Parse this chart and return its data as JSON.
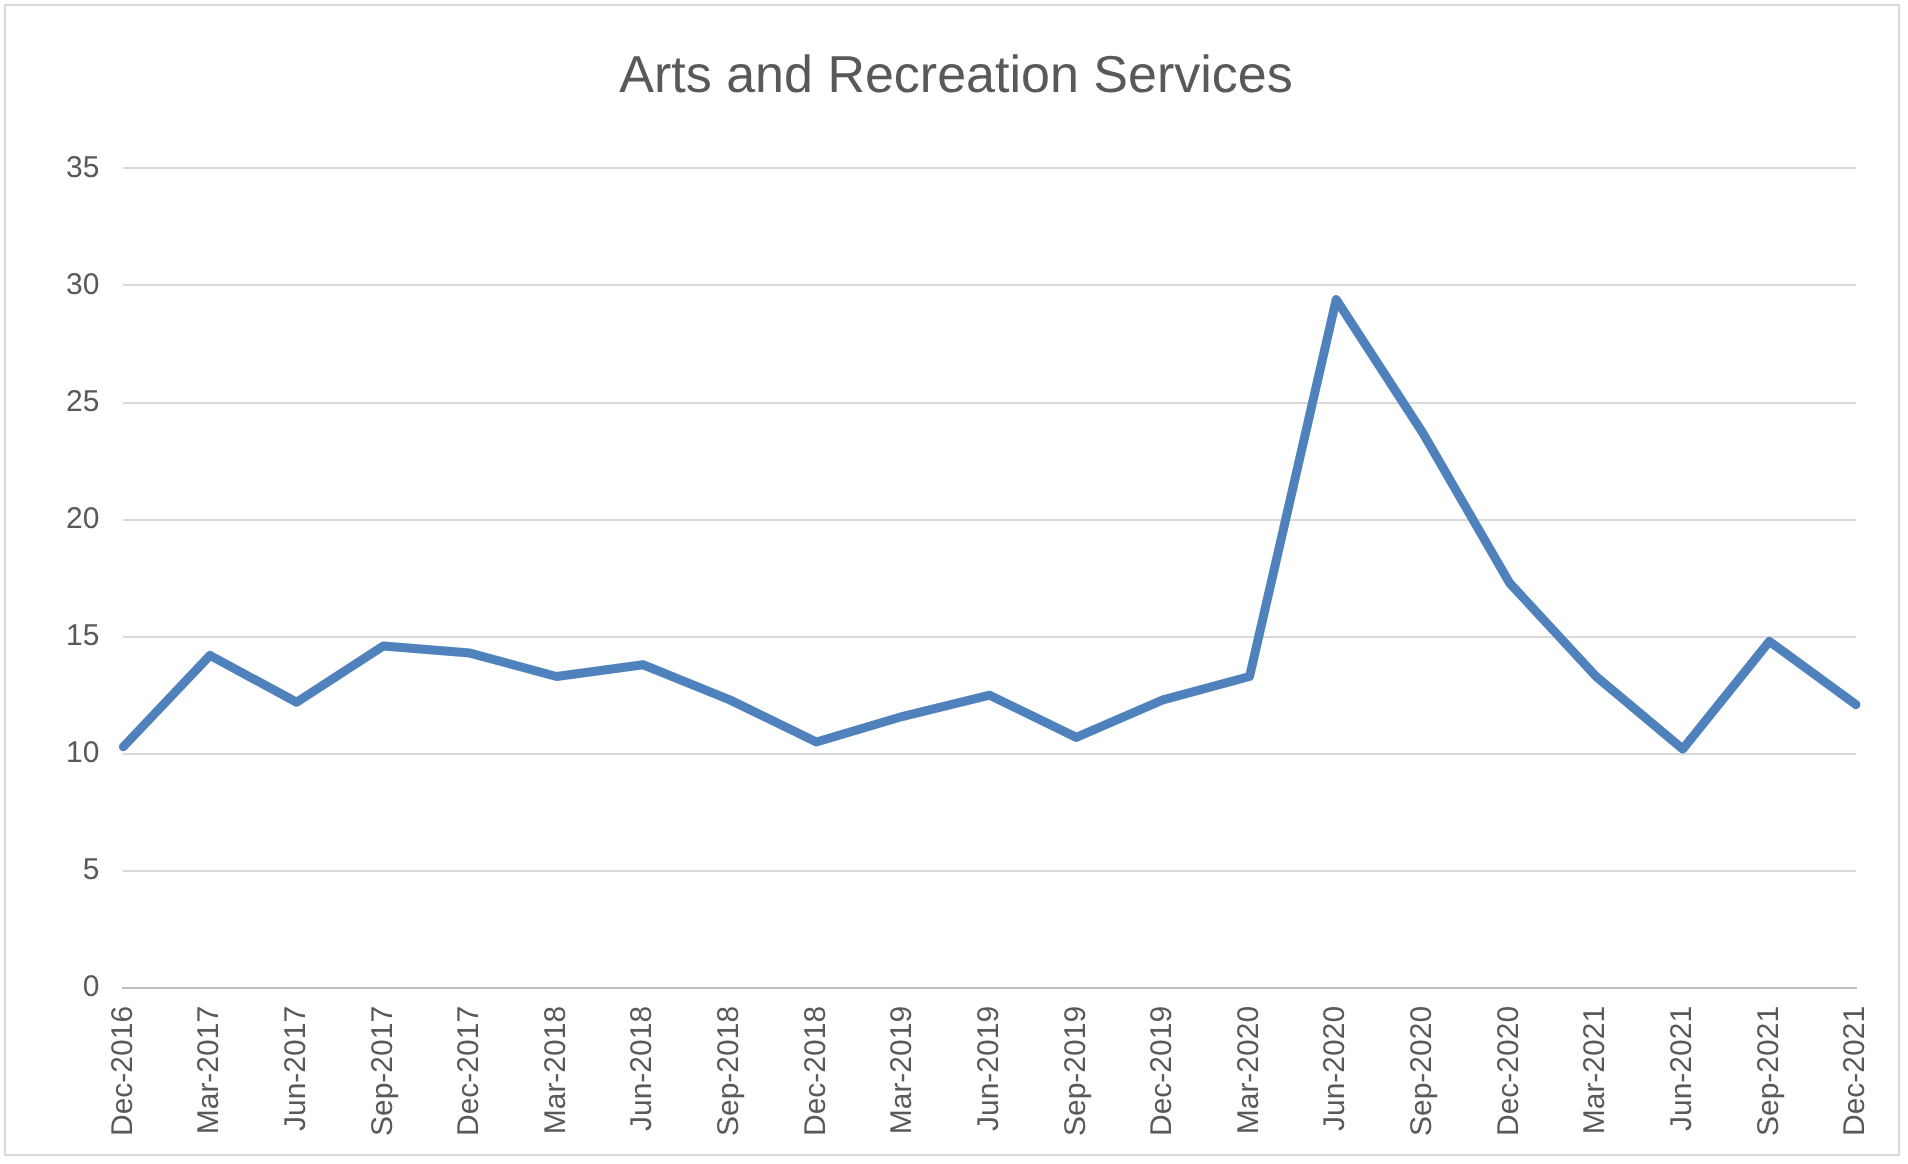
{
  "chart_data": {
    "type": "line",
    "title": "Arts and Recreation Services",
    "categories": [
      "Dec-2016",
      "Mar-2017",
      "Jun-2017",
      "Sep-2017",
      "Dec-2017",
      "Mar-2018",
      "Jun-2018",
      "Sep-2018",
      "Dec-2018",
      "Mar-2019",
      "Jun-2019",
      "Sep-2019",
      "Dec-2019",
      "Mar-2020",
      "Jun-2020",
      "Sep-2020",
      "Dec-2020",
      "Mar-2021",
      "Jun-2021",
      "Sep-2021",
      "Dec-2021"
    ],
    "series": [
      {
        "color": "#4f81bd",
        "values": [
          10.3,
          14.2,
          12.2,
          14.6,
          14.3,
          13.3,
          13.8,
          12.3,
          10.5,
          11.6,
          12.5,
          10.7,
          12.3,
          13.3,
          29.4,
          23.7,
          17.3,
          13.3,
          10.2,
          14.8,
          12.1
        ]
      }
    ],
    "ylim": [
      0,
      35
    ],
    "yticks": [
      0,
      5,
      10,
      15,
      20,
      25,
      30,
      35
    ],
    "grid": "y",
    "legend": false,
    "marker": "none",
    "line_style": "solid"
  }
}
